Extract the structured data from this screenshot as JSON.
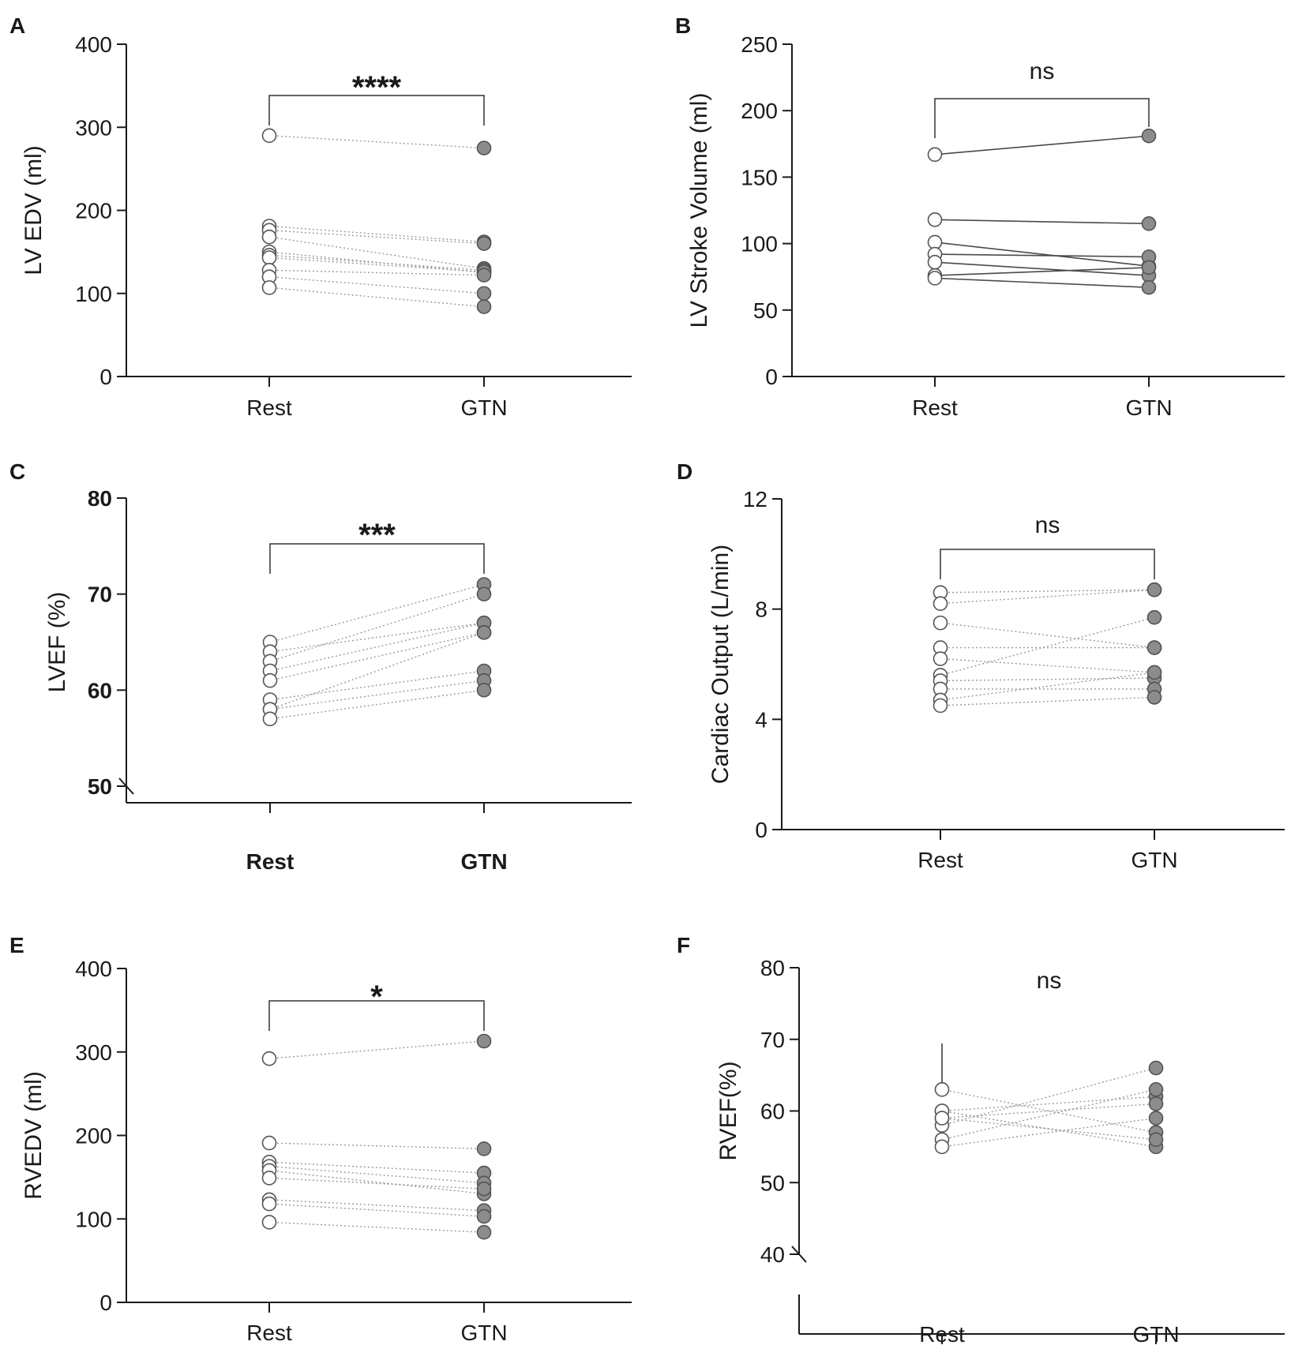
{
  "colors": {
    "axis": "#1a1a1a",
    "rest_fill": "#ffffff",
    "gtn_fill": "#8c8c8c",
    "marker_stroke": "#555555",
    "line_dotted": "#9a9a9a",
    "line_solid": "#4a4a4a"
  },
  "chart_data": [
    {
      "panel": "A",
      "type": "scatter",
      "ylabel": "LV EDV (ml)",
      "categories": [
        "Rest",
        "GTN"
      ],
      "ylim": [
        0,
        400
      ],
      "yticks": [
        "0",
        "100",
        "200",
        "300",
        "400"
      ],
      "significance": "****",
      "line_style": "dotted",
      "bold_ticks": false,
      "axis_break": false,
      "pairs": [
        [
          290,
          275
        ],
        [
          181,
          162
        ],
        [
          176,
          160
        ],
        [
          168,
          130
        ],
        [
          150,
          125
        ],
        [
          146,
          128
        ],
        [
          143,
          126
        ],
        [
          128,
          122
        ],
        [
          120,
          100
        ],
        [
          107,
          84
        ]
      ]
    },
    {
      "panel": "B",
      "type": "scatter",
      "ylabel": "LV Stroke Volume (ml)",
      "categories": [
        "Rest",
        "GTN"
      ],
      "ylim": [
        0,
        250
      ],
      "yticks": [
        "0",
        "50",
        "100",
        "150",
        "200",
        "250"
      ],
      "significance": "ns",
      "line_style": "solid",
      "bold_ticks": false,
      "axis_break": false,
      "pairs": [
        [
          167,
          181
        ],
        [
          118,
          115
        ],
        [
          101,
          83
        ],
        [
          92,
          90
        ],
        [
          86,
          76
        ],
        [
          76,
          82
        ],
        [
          74,
          67
        ]
      ]
    },
    {
      "panel": "C",
      "type": "scatter",
      "ylabel": "LVEF (%)",
      "categories": [
        "Rest",
        "GTN"
      ],
      "ylim": [
        50,
        80
      ],
      "yticks": [
        "50",
        "60",
        "70",
        "80"
      ],
      "significance": "***",
      "line_style": "dotted",
      "bold_ticks": true,
      "axis_break": true,
      "pairs": [
        [
          65,
          71
        ],
        [
          64,
          67
        ],
        [
          63,
          70
        ],
        [
          62,
          67
        ],
        [
          61,
          66
        ],
        [
          59,
          62
        ],
        [
          58,
          61
        ],
        [
          58,
          66
        ],
        [
          57,
          60
        ]
      ]
    },
    {
      "panel": "D",
      "type": "scatter",
      "ylabel": "Cardiac Output (L/min)",
      "categories": [
        "Rest",
        "GTN"
      ],
      "ylim": [
        0,
        12
      ],
      "yticks": [
        "0",
        "4",
        "8",
        "12"
      ],
      "significance": "ns",
      "line_style": "dotted",
      "bold_ticks": false,
      "axis_break": false,
      "pairs": [
        [
          8.6,
          8.7
        ],
        [
          8.2,
          8.7
        ],
        [
          7.5,
          6.6
        ],
        [
          6.6,
          6.6
        ],
        [
          6.2,
          5.7
        ],
        [
          5.6,
          7.7
        ],
        [
          5.4,
          5.5
        ],
        [
          5.1,
          5.1
        ],
        [
          4.7,
          5.7
        ],
        [
          4.5,
          4.8
        ]
      ]
    },
    {
      "panel": "E",
      "type": "scatter",
      "ylabel": "RVEDV (ml)",
      "categories": [
        "Rest",
        "GTN"
      ],
      "ylim": [
        0,
        400
      ],
      "yticks": [
        "0",
        "100",
        "200",
        "300",
        "400"
      ],
      "significance": "*",
      "line_style": "dotted",
      "bold_ticks": false,
      "axis_break": false,
      "pairs": [
        [
          292,
          313
        ],
        [
          191,
          184
        ],
        [
          168,
          155
        ],
        [
          163,
          143
        ],
        [
          158,
          130
        ],
        [
          149,
          136
        ],
        [
          123,
          110
        ],
        [
          118,
          103
        ],
        [
          96,
          84
        ]
      ]
    },
    {
      "panel": "F",
      "type": "scatter",
      "ylabel": "RVEF(%)",
      "categories": [
        "Rest",
        "GTN"
      ],
      "ylim": [
        40,
        80
      ],
      "yticks": [
        "40",
        "50",
        "60",
        "70",
        "80"
      ],
      "significance": "ns",
      "line_style": "dotted",
      "bold_ticks": false,
      "axis_break": true,
      "pairs": [
        [
          63,
          57
        ],
        [
          60,
          62
        ],
        [
          59,
          61
        ],
        [
          58,
          66
        ],
        [
          56,
          63
        ],
        [
          55,
          59
        ],
        [
          60,
          55
        ],
        [
          59,
          56
        ]
      ]
    }
  ]
}
